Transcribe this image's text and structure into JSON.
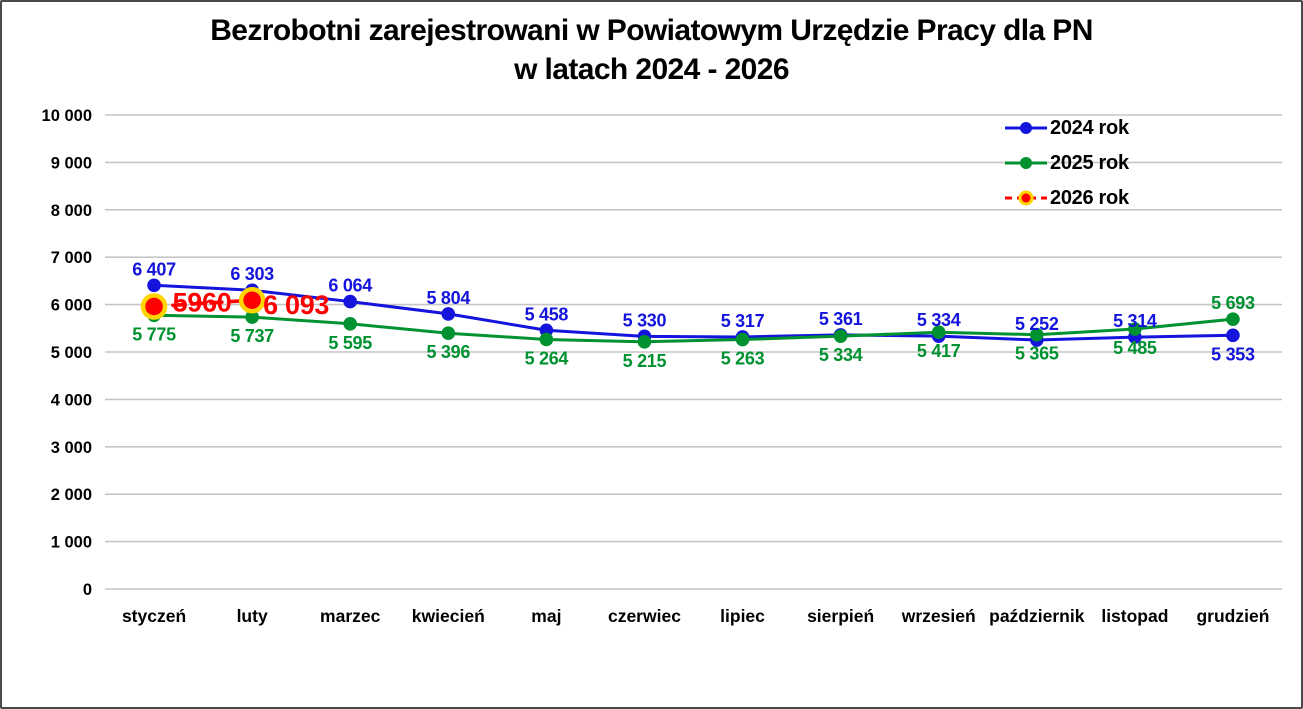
{
  "window": {
    "background": "#ffffff",
    "border_color": "#4a4a4a"
  },
  "title": {
    "line1": "Bezrobotni zarejestrowani w Powiatowym Urzędzie Pracy dla PN",
    "line2": "w latach 2024 - 2026"
  },
  "legend": {
    "position": "top-right",
    "items": [
      {
        "series_id": "2024-rok",
        "label": "2024 rok"
      },
      {
        "series_id": "2025-rok",
        "label": "2025 rok"
      },
      {
        "series_id": "2026-rok",
        "label": "2026 rok"
      }
    ]
  },
  "chart_data": {
    "type": "line",
    "title": "Bezrobotni zarejestrowani w Powiatowym Urzędzie Pracy dla PN w latach 2024 - 2026",
    "xlabel": "",
    "ylabel": "",
    "ylim": [
      0,
      10000
    ],
    "ytick_step": 1000,
    "ytick_labels": [
      "0",
      "1 000",
      "2 000",
      "3 000",
      "4 000",
      "5 000",
      "6 000",
      "7 000",
      "8 000",
      "9 000",
      "10 000"
    ],
    "grid": "horizontal",
    "legend_position": "top-right",
    "gridline_color": "#c6c6c6",
    "categories": [
      "styczeń",
      "luty",
      "marzec",
      "kwiecień",
      "maj",
      "czerwiec",
      "lipiec",
      "sierpień",
      "wrzesień",
      "październik",
      "listopad",
      "grudzień"
    ],
    "series": [
      {
        "id": "2024-rok",
        "name": "2024 rok",
        "color": "#1414dc",
        "line_style": "solid",
        "marker": "circle",
        "values": [
          6407,
          6303,
          6064,
          5804,
          5458,
          5330,
          5317,
          5361,
          5334,
          5252,
          5314,
          5353
        ],
        "labels": [
          "6 407",
          "6 303",
          "6 064",
          "5 804",
          "5 458",
          "5 330",
          "5 317",
          "5 361",
          "5 334",
          "5 252",
          "5 314",
          "5 353"
        ],
        "label_side": [
          "above",
          "above",
          "above",
          "above",
          "above",
          "above",
          "above",
          "above",
          "above",
          "above",
          "above",
          "below"
        ],
        "label_font_size": 18
      },
      {
        "id": "2025-rok",
        "name": "2025 rok",
        "color": "#009230",
        "line_style": "solid",
        "marker": "circle",
        "values": [
          5775,
          5737,
          5595,
          5396,
          5264,
          5215,
          5263,
          5334,
          5417,
          5365,
          5485,
          5693
        ],
        "labels": [
          "5 775",
          "5 737",
          "5 595",
          "5 396",
          "5 264",
          "5 215",
          "5 263",
          "5 334",
          "5 417",
          "5 365",
          "5 485",
          "5 693"
        ],
        "label_side": [
          "below",
          "below",
          "below",
          "below",
          "below",
          "below",
          "below",
          "below",
          "below",
          "below",
          "below",
          "above"
        ],
        "label_font_size": 18
      },
      {
        "id": "2026-rok",
        "name": "2026 rok",
        "color": "#ff0000",
        "line_style": "dashed",
        "marker": "circle",
        "marker_ring": "#ffd400",
        "values": [
          5960,
          6093,
          null,
          null,
          null,
          null,
          null,
          null,
          null,
          null,
          null,
          null
        ],
        "labels": [
          "5960",
          "6 093"
        ],
        "label_side": [
          "beside",
          "beside"
        ],
        "label_offsets": [
          {
            "dx": 48,
            "dy": 5
          },
          {
            "dx": 44,
            "dy": 14
          }
        ],
        "label_font_size": 27
      }
    ]
  }
}
